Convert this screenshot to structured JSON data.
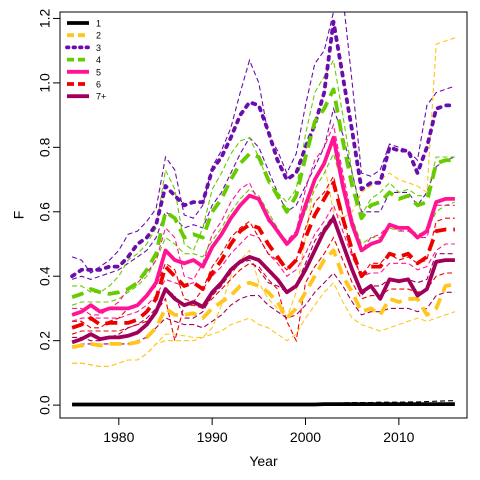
{
  "chart_data": {
    "type": "line",
    "xlabel": "Year",
    "ylabel": "F",
    "xlim": [
      1973.7,
      2017.3
    ],
    "ylim": [
      -0.04,
      1.22
    ],
    "x_ticks": [
      1980,
      1990,
      2000,
      2010
    ],
    "y_ticks": [
      0.0,
      0.2,
      0.4,
      0.6,
      0.8,
      1.0,
      1.2
    ],
    "y_tick_labels": [
      "0.0",
      "0.2",
      "0.4",
      "0.6",
      "0.8",
      "1.0",
      "1.2"
    ],
    "grid": false,
    "legend_position": "top-left",
    "x": [
      1975,
      1976,
      1977,
      1978,
      1979,
      1980,
      1981,
      1982,
      1983,
      1984,
      1985,
      1986,
      1987,
      1988,
      1989,
      1990,
      1991,
      1992,
      1993,
      1994,
      1995,
      1996,
      1997,
      1998,
      1999,
      2000,
      2001,
      2002,
      2003,
      2004,
      2005,
      2006,
      2007,
      2008,
      2009,
      2010,
      2011,
      2012,
      2013,
      2014,
      2015,
      2016
    ],
    "series": [
      {
        "name": "1",
        "color": "#000000",
        "dash": "solid",
        "values": [
          0.002,
          0.002,
          0.002,
          0.002,
          0.002,
          0.002,
          0.002,
          0.002,
          0.002,
          0.002,
          0.002,
          0.002,
          0.002,
          0.002,
          0.002,
          0.002,
          0.002,
          0.002,
          0.002,
          0.002,
          0.002,
          0.002,
          0.002,
          0.002,
          0.002,
          0.002,
          0.002,
          0.003,
          0.003,
          0.003,
          0.003,
          0.003,
          0.003,
          0.003,
          0.003,
          0.003,
          0.003,
          0.003,
          0.003,
          0.003,
          0.003,
          0.003
        ],
        "upper": [
          0.003,
          0.003,
          0.003,
          0.003,
          0.003,
          0.003,
          0.003,
          0.003,
          0.003,
          0.003,
          0.003,
          0.003,
          0.003,
          0.003,
          0.003,
          0.003,
          0.003,
          0.003,
          0.003,
          0.003,
          0.003,
          0.003,
          0.003,
          0.003,
          0.003,
          0.003,
          0.004,
          0.005,
          0.006,
          0.007,
          0.008,
          0.008,
          0.008,
          0.009,
          0.009,
          0.009,
          0.01,
          0.01,
          0.011,
          0.012,
          0.013,
          0.014
        ],
        "lower": [
          0.001,
          0.001,
          0.001,
          0.001,
          0.001,
          0.001,
          0.001,
          0.001,
          0.001,
          0.001,
          0.001,
          0.001,
          0.001,
          0.001,
          0.001,
          0.001,
          0.001,
          0.001,
          0.001,
          0.001,
          0.001,
          0.001,
          0.001,
          0.001,
          0.001,
          0.001,
          0.001,
          0.001,
          0.001,
          0.001,
          0.001,
          0.001,
          0.001,
          0.001,
          0.001,
          0.001,
          0.001,
          0.001,
          0.001,
          0.001,
          0.001,
          0.001
        ]
      },
      {
        "name": "2",
        "color": "#FFC61E",
        "dash": "dash",
        "values": [
          0.18,
          0.185,
          0.19,
          0.185,
          0.19,
          0.19,
          0.19,
          0.195,
          0.21,
          0.24,
          0.3,
          0.28,
          0.28,
          0.285,
          0.27,
          0.3,
          0.32,
          0.34,
          0.37,
          0.38,
          0.37,
          0.35,
          0.32,
          0.27,
          0.3,
          0.35,
          0.4,
          0.45,
          0.48,
          0.4,
          0.35,
          0.29,
          0.3,
          0.28,
          0.33,
          0.32,
          0.33,
          0.33,
          0.28,
          0.3,
          0.37,
          0.375
        ],
        "upper": [
          0.13,
          0.13,
          0.125,
          0.12,
          0.12,
          0.13,
          0.14,
          0.14,
          0.16,
          0.19,
          0.22,
          0.22,
          0.215,
          0.21,
          0.21,
          0.24,
          0.31,
          0.4,
          0.45,
          0.48,
          0.38,
          0.33,
          0.3,
          0.27,
          0.35,
          0.52,
          0.7,
          0.75,
          0.6,
          0.58,
          0.6,
          0.66,
          0.68,
          0.7,
          0.72,
          0.7,
          0.69,
          0.68,
          0.66,
          1.12,
          1.13,
          1.14
        ],
        "lower": [
          0.13,
          0.13,
          0.125,
          0.12,
          0.12,
          0.13,
          0.14,
          0.14,
          0.16,
          0.19,
          0.2,
          0.2,
          0.2,
          0.2,
          0.21,
          0.22,
          0.23,
          0.25,
          0.26,
          0.27,
          0.25,
          0.24,
          0.22,
          0.2,
          0.22,
          0.27,
          0.31,
          0.35,
          0.38,
          0.32,
          0.27,
          0.25,
          0.24,
          0.23,
          0.24,
          0.25,
          0.26,
          0.27,
          0.26,
          0.27,
          0.28,
          0.29
        ]
      },
      {
        "name": "3",
        "color": "#6A0DAD",
        "dash": "dot",
        "values": [
          0.4,
          0.42,
          0.42,
          0.42,
          0.43,
          0.43,
          0.46,
          0.5,
          0.52,
          0.56,
          0.68,
          0.65,
          0.62,
          0.63,
          0.63,
          0.73,
          0.77,
          0.83,
          0.9,
          0.94,
          0.93,
          0.85,
          0.76,
          0.7,
          0.72,
          0.8,
          0.87,
          0.97,
          1.19,
          1.02,
          0.85,
          0.67,
          0.69,
          0.69,
          0.8,
          0.79,
          0.79,
          0.72,
          0.8,
          0.92,
          0.93,
          0.93
        ],
        "upper": [
          0.46,
          0.45,
          0.41,
          0.43,
          0.45,
          0.48,
          0.53,
          0.54,
          0.57,
          0.61,
          0.77,
          0.73,
          0.59,
          0.58,
          0.62,
          0.74,
          0.79,
          0.86,
          0.97,
          1.07,
          1.0,
          0.84,
          0.79,
          0.72,
          0.78,
          0.93,
          1.06,
          1.1,
          1.22,
          1.27,
          1.0,
          0.72,
          0.71,
          0.73,
          0.81,
          0.8,
          0.79,
          0.76,
          0.93,
          0.97,
          0.98,
          0.99
        ],
        "lower": [
          0.39,
          0.4,
          0.39,
          0.4,
          0.41,
          0.42,
          0.44,
          0.46,
          0.48,
          0.52,
          0.6,
          0.58,
          0.55,
          0.56,
          0.55,
          0.62,
          0.66,
          0.72,
          0.78,
          0.83,
          0.8,
          0.73,
          0.66,
          0.6,
          0.62,
          0.68,
          0.74,
          0.8,
          0.92,
          0.84,
          0.72,
          0.6,
          0.6,
          0.6,
          0.66,
          0.66,
          0.66,
          0.62,
          0.66,
          0.74,
          0.76,
          0.77
        ]
      },
      {
        "name": "4",
        "color": "#66CC00",
        "dash": "dash",
        "values": [
          0.335,
          0.345,
          0.36,
          0.35,
          0.345,
          0.35,
          0.36,
          0.38,
          0.42,
          0.47,
          0.6,
          0.58,
          0.52,
          0.53,
          0.52,
          0.6,
          0.64,
          0.7,
          0.75,
          0.78,
          0.77,
          0.7,
          0.65,
          0.6,
          0.65,
          0.77,
          0.88,
          0.92,
          0.98,
          0.82,
          0.68,
          0.58,
          0.62,
          0.63,
          0.66,
          0.64,
          0.65,
          0.62,
          0.63,
          0.75,
          0.76,
          0.76
        ],
        "upper": [
          0.37,
          0.37,
          0.35,
          0.35,
          0.37,
          0.4,
          0.45,
          0.47,
          0.5,
          0.55,
          0.73,
          0.67,
          0.5,
          0.48,
          0.55,
          0.67,
          0.72,
          0.78,
          0.82,
          0.83,
          0.77,
          0.69,
          0.66,
          0.63,
          0.67,
          0.84,
          0.97,
          1.02,
          1.07,
          0.9,
          0.72,
          0.59,
          0.64,
          0.66,
          0.69,
          0.66,
          0.67,
          0.65,
          0.65,
          0.77,
          0.77,
          0.77
        ],
        "lower": [
          0.31,
          0.32,
          0.32,
          0.32,
          0.32,
          0.33,
          0.35,
          0.37,
          0.4,
          0.45,
          0.52,
          0.5,
          0.47,
          0.47,
          0.46,
          0.51,
          0.55,
          0.6,
          0.64,
          0.67,
          0.65,
          0.6,
          0.55,
          0.5,
          0.53,
          0.6,
          0.67,
          0.72,
          0.78,
          0.68,
          0.58,
          0.5,
          0.52,
          0.52,
          0.55,
          0.54,
          0.55,
          0.53,
          0.54,
          0.6,
          0.62,
          0.63
        ]
      },
      {
        "name": "5",
        "color": "#FF1493",
        "dash": "solid",
        "values": [
          0.28,
          0.29,
          0.31,
          0.29,
          0.3,
          0.3,
          0.3,
          0.31,
          0.34,
          0.38,
          0.48,
          0.45,
          0.44,
          0.45,
          0.43,
          0.49,
          0.53,
          0.58,
          0.62,
          0.65,
          0.64,
          0.58,
          0.54,
          0.5,
          0.53,
          0.62,
          0.7,
          0.75,
          0.83,
          0.68,
          0.56,
          0.48,
          0.5,
          0.51,
          0.56,
          0.55,
          0.55,
          0.52,
          0.54,
          0.63,
          0.64,
          0.64
        ],
        "upper": [
          0.3,
          0.3,
          0.28,
          0.28,
          0.3,
          0.32,
          0.36,
          0.38,
          0.41,
          0.45,
          0.55,
          0.52,
          0.4,
          0.39,
          0.44,
          0.53,
          0.57,
          0.63,
          0.67,
          0.69,
          0.63,
          0.57,
          0.54,
          0.51,
          0.54,
          0.67,
          0.76,
          0.8,
          0.87,
          0.72,
          0.58,
          0.48,
          0.52,
          0.53,
          0.56,
          0.54,
          0.54,
          0.52,
          0.52,
          0.62,
          0.62,
          0.62
        ],
        "lower": [
          0.26,
          0.27,
          0.27,
          0.27,
          0.27,
          0.27,
          0.28,
          0.29,
          0.31,
          0.34,
          0.39,
          0.38,
          0.37,
          0.38,
          0.36,
          0.4,
          0.43,
          0.47,
          0.5,
          0.53,
          0.52,
          0.47,
          0.44,
          0.4,
          0.42,
          0.47,
          0.53,
          0.57,
          0.62,
          0.54,
          0.46,
          0.4,
          0.41,
          0.41,
          0.44,
          0.44,
          0.44,
          0.42,
          0.43,
          0.48,
          0.5,
          0.5
        ]
      },
      {
        "name": "6",
        "color": "#EE0000",
        "dash": "dash",
        "values": [
          0.24,
          0.25,
          0.27,
          0.25,
          0.255,
          0.255,
          0.255,
          0.265,
          0.29,
          0.33,
          0.43,
          0.4,
          0.37,
          0.38,
          0.36,
          0.41,
          0.45,
          0.5,
          0.54,
          0.56,
          0.55,
          0.5,
          0.46,
          0.42,
          0.45,
          0.52,
          0.59,
          0.64,
          0.69,
          0.58,
          0.48,
          0.4,
          0.43,
          0.43,
          0.47,
          0.46,
          0.47,
          0.44,
          0.46,
          0.54,
          0.545,
          0.545
        ],
        "upper": [
          0.26,
          0.26,
          0.24,
          0.24,
          0.26,
          0.27,
          0.3,
          0.31,
          0.34,
          0.37,
          0.44,
          0.42,
          0.33,
          0.32,
          0.36,
          0.43,
          0.47,
          0.52,
          0.55,
          0.57,
          0.52,
          0.47,
          0.45,
          0.42,
          0.45,
          0.55,
          0.63,
          0.66,
          0.71,
          0.59,
          0.47,
          0.4,
          0.44,
          0.44,
          0.47,
          0.45,
          0.46,
          0.44,
          0.45,
          0.57,
          0.58,
          0.58
        ],
        "lower": [
          0.22,
          0.23,
          0.23,
          0.23,
          0.23,
          0.23,
          0.24,
          0.25,
          0.26,
          0.29,
          0.33,
          0.2,
          0.31,
          0.31,
          0.3,
          0.33,
          0.36,
          0.39,
          0.42,
          0.44,
          0.43,
          0.39,
          0.36,
          0.26,
          0.2,
          0.38,
          0.43,
          0.47,
          0.52,
          0.45,
          0.38,
          0.33,
          0.34,
          0.34,
          0.36,
          0.36,
          0.36,
          0.35,
          0.36,
          0.4,
          0.41,
          0.41
        ]
      },
      {
        "name": "7+",
        "color": "#A0005A",
        "dash": "solid",
        "values": [
          0.195,
          0.205,
          0.22,
          0.205,
          0.21,
          0.21,
          0.215,
          0.225,
          0.25,
          0.29,
          0.36,
          0.33,
          0.31,
          0.32,
          0.305,
          0.35,
          0.38,
          0.42,
          0.445,
          0.46,
          0.45,
          0.42,
          0.39,
          0.35,
          0.37,
          0.42,
          0.48,
          0.54,
          0.58,
          0.5,
          0.42,
          0.35,
          0.37,
          0.33,
          0.39,
          0.385,
          0.39,
          0.34,
          0.36,
          0.445,
          0.45,
          0.45
        ],
        "upper": [
          0.21,
          0.21,
          0.2,
          0.2,
          0.21,
          0.22,
          0.24,
          0.25,
          0.27,
          0.3,
          0.36,
          0.34,
          0.27,
          0.27,
          0.29,
          0.34,
          0.37,
          0.41,
          0.44,
          0.45,
          0.42,
          0.38,
          0.37,
          0.35,
          0.37,
          0.44,
          0.51,
          0.55,
          0.59,
          0.5,
          0.41,
          0.34,
          0.37,
          0.37,
          0.39,
          0.38,
          0.39,
          0.38,
          0.39,
          0.47,
          0.47,
          0.47
        ],
        "lower": [
          0.18,
          0.19,
          0.19,
          0.19,
          0.19,
          0.19,
          0.19,
          0.2,
          0.21,
          0.24,
          0.27,
          0.26,
          0.25,
          0.25,
          0.24,
          0.26,
          0.28,
          0.31,
          0.33,
          0.34,
          0.34,
          0.31,
          0.29,
          0.27,
          0.28,
          0.31,
          0.35,
          0.38,
          0.41,
          0.37,
          0.32,
          0.28,
          0.29,
          0.29,
          0.3,
          0.3,
          0.3,
          0.29,
          0.3,
          0.34,
          0.35,
          0.35
        ]
      }
    ]
  }
}
